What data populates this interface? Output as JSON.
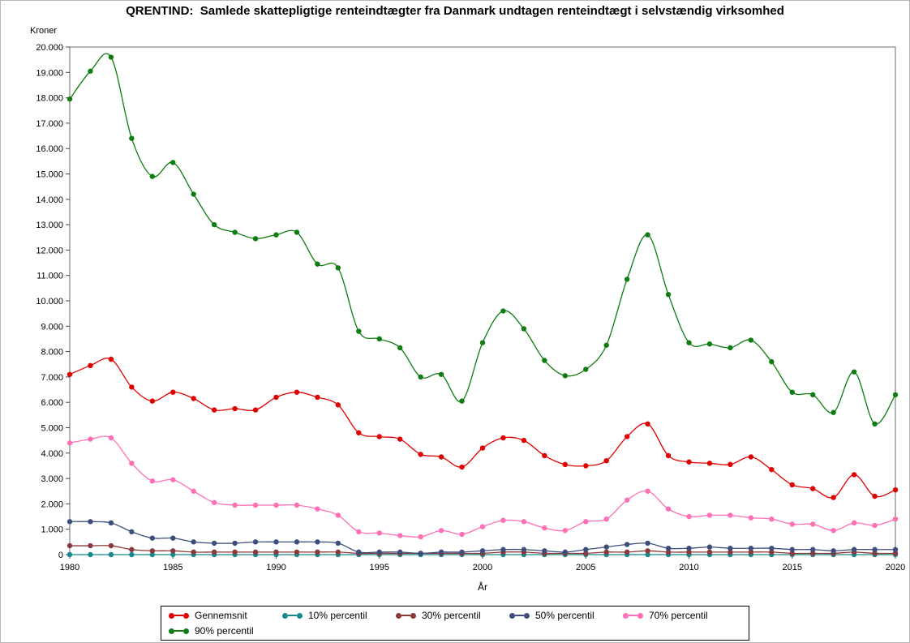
{
  "figure": {
    "title": "QRENTIND:  Samlede skattepligtige renteindtægter fra Danmark undtagen renteindtægt i selvstændig virksomhed"
  },
  "chart_data": {
    "type": "line",
    "title": "QRENTIND:  Samlede skattepligtige renteindtægter fra Danmark undtagen renteindtægt i selvstændig virksomhed",
    "xlabel": "År",
    "ylabel": "Kroner",
    "xlim": [
      1980,
      2020
    ],
    "ylim": [
      0,
      20000
    ],
    "grid": false,
    "legend_position": "bottom",
    "x_tick_values": [
      1980,
      1985,
      1990,
      1995,
      2000,
      2005,
      2010,
      2015,
      2020
    ],
    "x_tick_labels": [
      "1980",
      "1985",
      "1990",
      "1995",
      "2000",
      "2005",
      "2010",
      "2015",
      "2020"
    ],
    "y_tick_values": [
      0,
      1000,
      2000,
      3000,
      4000,
      5000,
      6000,
      7000,
      8000,
      9000,
      10000,
      11000,
      12000,
      13000,
      14000,
      15000,
      16000,
      17000,
      18000,
      19000,
      20000
    ],
    "y_tick_labels": [
      "0",
      "1.000",
      "2.000",
      "3.000",
      "4.000",
      "5.000",
      "6.000",
      "7.000",
      "8.000",
      "9.000",
      "10.000",
      "11.000",
      "12.000",
      "13.000",
      "14.000",
      "15.000",
      "16.000",
      "17.000",
      "18.000",
      "19.000",
      "20.000"
    ],
    "x": [
      1980,
      1981,
      1982,
      1983,
      1984,
      1985,
      1986,
      1987,
      1988,
      1989,
      1990,
      1991,
      1992,
      1993,
      1994,
      1995,
      1996,
      1997,
      1998,
      1999,
      2000,
      2001,
      2002,
      2003,
      2004,
      2005,
      2006,
      2007,
      2008,
      2009,
      2010,
      2011,
      2012,
      2013,
      2014,
      2015,
      2016,
      2017,
      2018,
      2019,
      2020
    ],
    "series": [
      {
        "name": "Gennemsnit",
        "color": "#e10000",
        "values": [
          7100,
          7450,
          7700,
          6600,
          6050,
          6400,
          6150,
          5700,
          5750,
          5700,
          6200,
          6400,
          6200,
          5900,
          4800,
          4650,
          4550,
          3950,
          3850,
          3450,
          4200,
          4600,
          4500,
          3900,
          3550,
          3500,
          3700,
          4650,
          5150,
          3900,
          3650,
          3600,
          3550,
          3850,
          3350,
          2750,
          2600,
          2250,
          3150,
          2300,
          2550
        ]
      },
      {
        "name": "10% percentil",
        "color": "#17898b",
        "values": [
          0,
          0,
          0,
          0,
          0,
          0,
          0,
          0,
          0,
          0,
          0,
          0,
          0,
          0,
          0,
          0,
          0,
          0,
          0,
          0,
          0,
          0,
          0,
          0,
          0,
          0,
          0,
          0,
          0,
          0,
          0,
          0,
          0,
          0,
          0,
          0,
          0,
          0,
          0,
          0,
          0
        ]
      },
      {
        "name": "30% percentil",
        "color": "#8b3a3a",
        "values": [
          350,
          350,
          350,
          200,
          150,
          150,
          100,
          100,
          100,
          100,
          100,
          100,
          100,
          100,
          50,
          50,
          50,
          50,
          50,
          50,
          50,
          100,
          100,
          50,
          50,
          50,
          100,
          100,
          150,
          100,
          100,
          100,
          100,
          100,
          100,
          50,
          50,
          50,
          100,
          50,
          50
        ]
      },
      {
        "name": "50% percentil",
        "color": "#3d4e7c",
        "values": [
          1300,
          1300,
          1250,
          900,
          650,
          650,
          500,
          450,
          450,
          500,
          500,
          500,
          500,
          450,
          100,
          100,
          100,
          50,
          100,
          100,
          150,
          200,
          200,
          150,
          100,
          200,
          300,
          400,
          450,
          250,
          250,
          300,
          250,
          250,
          250,
          200,
          200,
          150,
          200,
          200,
          200
        ]
      },
      {
        "name": "70% percentil",
        "color": "#ff6fb5",
        "values": [
          4400,
          4550,
          4600,
          3600,
          2900,
          2950,
          2500,
          2050,
          1950,
          1950,
          1950,
          1950,
          1800,
          1550,
          900,
          850,
          750,
          700,
          950,
          800,
          1100,
          1350,
          1300,
          1050,
          950,
          1300,
          1400,
          2150,
          2500,
          1800,
          1500,
          1550,
          1550,
          1450,
          1400,
          1200,
          1200,
          950,
          1250,
          1150,
          1400
        ]
      },
      {
        "name": "90% percentil",
        "color": "#0e7c10",
        "values": [
          17950,
          19050,
          19600,
          16400,
          14900,
          15450,
          14200,
          13000,
          12700,
          12450,
          12600,
          12700,
          11450,
          11300,
          8800,
          8500,
          8150,
          7000,
          7100,
          6050,
          8350,
          9600,
          8900,
          7650,
          7050,
          7300,
          8250,
          10850,
          12600,
          10250,
          8350,
          8300,
          8150,
          8450,
          7600,
          6400,
          6300,
          5600,
          7200,
          5150,
          6300
        ]
      }
    ]
  }
}
